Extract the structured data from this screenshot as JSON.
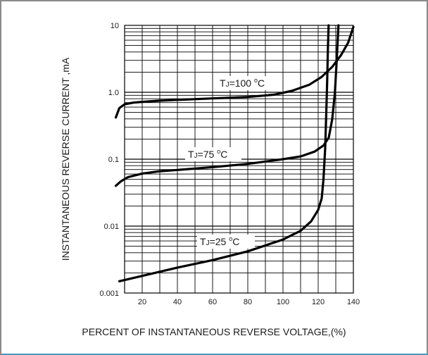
{
  "chart_data": {
    "type": "line",
    "xlabel": "PERCENT OF INSTANTANEOUS REVERSE VOLTAGE,(%)",
    "ylabel": "INSTANTANEOUS REVERSE CURRENT ,mA",
    "xlim": [
      10,
      140
    ],
    "ylim": [
      0.001,
      10
    ],
    "yscale": "log",
    "grid": true,
    "xticks": [
      20,
      40,
      60,
      80,
      100,
      120,
      140
    ],
    "xtick_labels": [
      "20",
      "40",
      "60",
      "80",
      "100",
      "120",
      "140"
    ],
    "yticks": [
      0.001,
      0.01,
      0.1,
      1,
      10
    ],
    "ytick_labels": [
      "0.001",
      "0.01",
      "0.1",
      "1.0",
      "10"
    ],
    "series": [
      {
        "label": "TJ=100 °C",
        "label_main": "T",
        "label_sub": "J",
        "label_rest": "=100 ",
        "label_sup": "o",
        "label_unit": "C",
        "x": [
          5,
          7,
          10,
          15,
          20,
          30,
          40,
          60,
          80,
          95,
          105,
          115,
          122,
          128,
          133,
          137,
          140
        ],
        "y": [
          0.42,
          0.58,
          0.66,
          0.7,
          0.72,
          0.75,
          0.77,
          0.81,
          0.85,
          0.92,
          1.05,
          1.3,
          1.7,
          2.4,
          3.6,
          5.5,
          9.5
        ]
      },
      {
        "label": "TJ=75 °C",
        "label_main": "T",
        "label_sub": "J",
        "label_rest": "=75 ",
        "label_sup": "o",
        "label_unit": "C",
        "x": [
          5,
          8,
          12,
          20,
          30,
          40,
          60,
          80,
          100,
          110,
          118,
          123,
          126,
          128,
          129.5,
          130.5,
          131.5
        ],
        "y": [
          0.04,
          0.047,
          0.054,
          0.061,
          0.066,
          0.069,
          0.076,
          0.085,
          0.1,
          0.11,
          0.13,
          0.16,
          0.21,
          0.4,
          1.0,
          3.0,
          10
        ]
      },
      {
        "label": "TJ=25 °C",
        "label_main": "T",
        "label_sub": "J",
        "label_rest": "=25 ",
        "label_sup": "o",
        "label_unit": "C",
        "x": [
          7,
          20,
          40,
          60,
          80,
          100,
          110,
          116,
          120,
          122,
          123,
          124,
          124.6,
          125.1,
          125.5,
          125.9
        ],
        "y": [
          0.0015,
          0.0018,
          0.0024,
          0.0031,
          0.0042,
          0.0063,
          0.0085,
          0.0118,
          0.0175,
          0.026,
          0.05,
          0.15,
          0.5,
          1.5,
          4.5,
          10
        ]
      }
    ]
  }
}
